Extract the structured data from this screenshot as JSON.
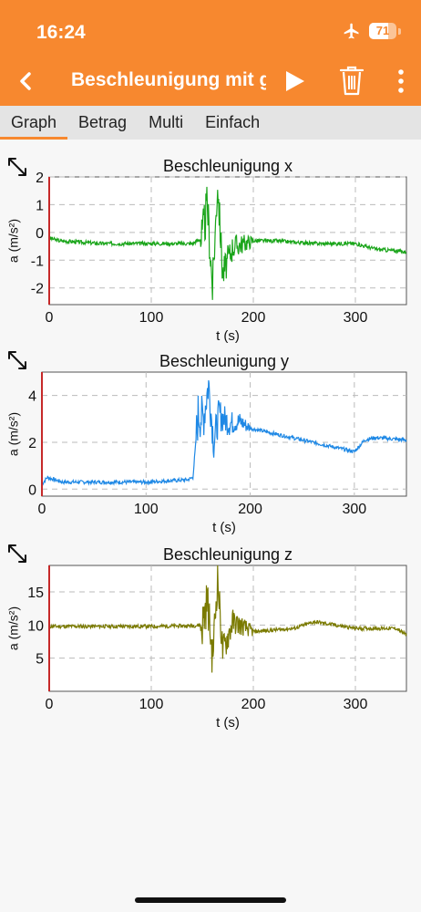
{
  "status": {
    "time": "16:24",
    "battery": "71",
    "battery_level": 0.71
  },
  "header": {
    "title": "Beschleunigung mit g"
  },
  "icons": {
    "back": "chevron-left-icon",
    "play": "play-icon",
    "trash": "trash-icon",
    "menu": "more-vertical-icon",
    "expand": "expand-icon",
    "airplane": "airplane-icon"
  },
  "colors": {
    "accent": "#f7882f",
    "x": "#1aa51a",
    "y": "#1e88e5",
    "z": "#7a7a00"
  },
  "tabs": [
    {
      "label": "Graph",
      "active": true
    },
    {
      "label": "Betrag",
      "active": false
    },
    {
      "label": "Multi",
      "active": false
    },
    {
      "label": "Einfach",
      "active": false
    }
  ],
  "chart_data": [
    {
      "type": "line",
      "title": "Beschleunigung x",
      "xlabel": "t (s)",
      "ylabel": "a (m/s²)",
      "xlim": [
        0,
        350
      ],
      "ylim": [
        -2.6,
        2.0
      ],
      "xticks": [
        0,
        100,
        200,
        300
      ],
      "yticks": [
        -2,
        -1,
        0,
        1,
        2
      ],
      "grid": true,
      "series": [
        {
          "x": [
            0,
            10,
            50,
            100,
            140,
            150,
            155,
            160,
            165,
            170,
            180,
            200,
            220,
            260,
            300,
            320,
            350
          ],
          "y": [
            -0.2,
            -0.3,
            -0.4,
            -0.4,
            -0.4,
            -0.2,
            1.0,
            -2.0,
            1.8,
            -1.5,
            -0.5,
            -0.3,
            -0.3,
            -0.4,
            -0.4,
            -0.6,
            -0.7
          ]
        }
      ]
    },
    {
      "type": "line",
      "title": "Beschleunigung y",
      "xlabel": "t (s)",
      "ylabel": "a (m/s²)",
      "xlim": [
        0,
        350
      ],
      "ylim": [
        -0.3,
        5.0
      ],
      "xticks": [
        0,
        100,
        200,
        300
      ],
      "yticks": [
        0,
        2,
        4
      ],
      "grid": true,
      "series": [
        {
          "x": [
            0,
            5,
            20,
            60,
            100,
            140,
            145,
            150,
            155,
            160,
            165,
            170,
            180,
            190,
            200,
            220,
            250,
            280,
            300,
            310,
            320,
            350
          ],
          "y": [
            0.2,
            0.5,
            0.3,
            0.3,
            0.3,
            0.4,
            0.5,
            3.2,
            3.0,
            4.5,
            2.0,
            3.2,
            2.8,
            2.9,
            2.6,
            2.4,
            2.1,
            1.8,
            1.6,
            2.1,
            2.2,
            2.1
          ]
        }
      ]
    },
    {
      "type": "line",
      "title": "Beschleunigung z",
      "xlabel": "t (s)",
      "ylabel": "a (m/s²)",
      "xlim": [
        0,
        350
      ],
      "ylim": [
        0,
        19
      ],
      "xticks": [
        0,
        100,
        200,
        300
      ],
      "yticks": [
        5,
        10,
        15
      ],
      "grid": true,
      "series": [
        {
          "x": [
            0,
            50,
            100,
            140,
            150,
            155,
            160,
            165,
            170,
            180,
            200,
            240,
            260,
            280,
            300,
            320,
            340,
            350
          ],
          "y": [
            9.8,
            9.8,
            9.8,
            9.9,
            10.0,
            14.0,
            5.0,
            17.0,
            6.0,
            10.5,
            9.0,
            9.5,
            10.5,
            10.0,
            9.5,
            9.5,
            9.5,
            8.5
          ]
        }
      ]
    }
  ]
}
